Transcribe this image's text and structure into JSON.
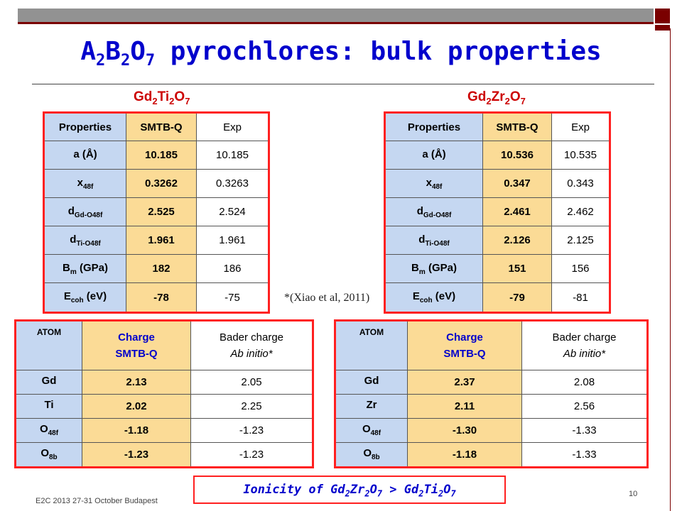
{
  "title": {
    "a": "A",
    "a_sub": "2",
    "b": "B",
    "b_sub": "2",
    "o": "O",
    "o_sub": "7",
    "rest": " pyrochlores: bulk properties"
  },
  "left_compound": {
    "gd": "Gd",
    "gd_sub": "2",
    "ti": "Ti",
    "ti_sub": "2",
    "o": "O",
    "o_sub": "7"
  },
  "right_compound": {
    "gd": "Gd",
    "gd_sub": "2",
    "zr": "Zr",
    "zr_sub": "2",
    "o": "O",
    "o_sub": "7"
  },
  "left_props": {
    "headers": [
      "Properties",
      "SMTB-Q",
      "Exp"
    ],
    "rows": [
      {
        "label": "a (Å)",
        "label_sub": "",
        "label_tail": "",
        "smtb": "10.185",
        "exp": "10.185"
      },
      {
        "label": "x",
        "label_sub": "48f",
        "label_tail": "",
        "smtb": "0.3262",
        "exp": "0.3263"
      },
      {
        "label": "d",
        "label_sub": "Gd-O48f",
        "label_tail": "",
        "smtb": "2.525",
        "exp": "2.524"
      },
      {
        "label": "d",
        "label_sub": "Ti-O48f",
        "label_tail": "",
        "smtb": "1.961",
        "exp": "1.961"
      },
      {
        "label": "B",
        "label_sub": "m",
        "label_tail": " (GPa)",
        "smtb": "182",
        "exp": "186"
      },
      {
        "label": "E",
        "label_sub": "coh",
        "label_tail": " (eV)",
        "smtb": "-78",
        "exp": "-75"
      }
    ]
  },
  "right_props": {
    "headers": [
      "Properties",
      "SMTB-Q",
      "Exp"
    ],
    "rows": [
      {
        "label": "a (Å)",
        "label_sub": "",
        "label_tail": "",
        "smtb": "10.536",
        "exp": "10.535"
      },
      {
        "label": "x",
        "label_sub": "48f",
        "label_tail": "",
        "smtb": "0.347",
        "exp": "0.343"
      },
      {
        "label": "d",
        "label_sub": "Gd-O48f",
        "label_tail": "",
        "smtb": "2.461",
        "exp": "2.462"
      },
      {
        "label": "d",
        "label_sub": "Ti-O48f",
        "label_tail": "",
        "smtb": "2.126",
        "exp": "2.125"
      },
      {
        "label": "B",
        "label_sub": "m",
        "label_tail": " (GPa)",
        "smtb": "151",
        "exp": "156"
      },
      {
        "label": "E",
        "label_sub": "coh",
        "label_tail": " (eV)",
        "smtb": "-79",
        "exp": "-81"
      }
    ]
  },
  "citation": "*(Xiao et al, 2011)",
  "left_charge": {
    "h_atom": "ATOM",
    "h_charge1": "Charge",
    "h_charge2": "SMTB-Q",
    "h_bader1": "Bader charge",
    "h_bader2": "Ab initio*",
    "rows": [
      {
        "atom": "Gd",
        "atom_sub": "",
        "smtb": "2.13",
        "bader": "2.05"
      },
      {
        "atom": "Ti",
        "atom_sub": "",
        "smtb": "2.02",
        "bader": "2.25"
      },
      {
        "atom": "O",
        "atom_sub": "48f",
        "smtb": "-1.18",
        "bader": "-1.23"
      },
      {
        "atom": "O",
        "atom_sub": "8b",
        "smtb": "-1.23",
        "bader": "-1.23"
      }
    ]
  },
  "right_charge": {
    "h_atom": "ATOM",
    "h_charge1": "Charge",
    "h_charge2": "SMTB-Q",
    "h_bader1": "Bader charge",
    "h_bader2": "Ab initio*",
    "rows": [
      {
        "atom": "Gd",
        "atom_sub": "",
        "smtb": "2.37",
        "bader": "2.08"
      },
      {
        "atom": "Zr",
        "atom_sub": "",
        "smtb": "2.11",
        "bader": "2.56"
      },
      {
        "atom": "O",
        "atom_sub": "48f",
        "smtb": "-1.30",
        "bader": "-1.33"
      },
      {
        "atom": "O",
        "atom_sub": "8b",
        "smtb": "-1.18",
        "bader": "-1.33"
      }
    ]
  },
  "ionicity": {
    "t1": "Ionicity of Gd",
    "s1": "2",
    "t2": "Zr",
    "s2": "2",
    "t3": "O",
    "s3": "7",
    "t4": " > Gd",
    "s4": "2",
    "t5": "Ti",
    "s5": "2",
    "t6": "O",
    "s6": "7"
  },
  "footer": "E2C 2013 27-31 October Budapest",
  "page_number": "10",
  "colors": {
    "title": "#0000cc",
    "compound": "#cc0000",
    "table_border": "#ff2020",
    "label_bg": "#c5d7f1",
    "smtb_bg": "#fbdb96",
    "bar": "#929292",
    "accent": "#7a0000"
  }
}
